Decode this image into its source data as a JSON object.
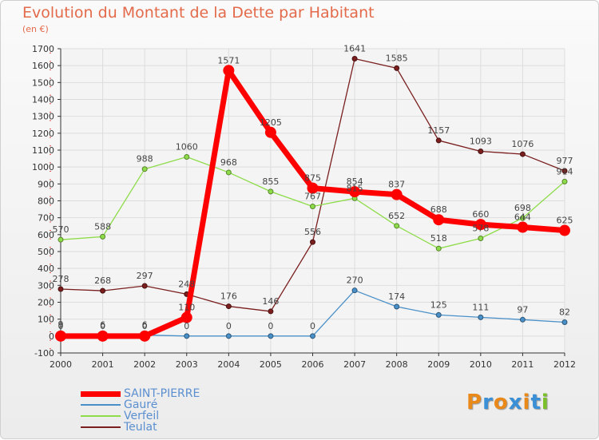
{
  "title": "Evolution du Montant de la Dette par Habitant",
  "subtitle": "(en €)",
  "logo": {
    "text": "Proxiti",
    "letter_colors": [
      "#e8891a",
      "#3a8fd6",
      "#e8891a",
      "#3a8fd6",
      "#e8891a",
      "#3a8fd6",
      "#7bbf2a"
    ]
  },
  "chart_data": {
    "type": "line",
    "title": "Evolution du Montant de la Dette par Habitant",
    "subtitle": "(en €)",
    "xlabel": "",
    "ylabel": "",
    "ylim": [
      -100,
      1700
    ],
    "yticks": [
      -100,
      0,
      100,
      200,
      300,
      400,
      500,
      600,
      700,
      800,
      900,
      1000,
      1100,
      1200,
      1300,
      1400,
      1500,
      1600,
      1700
    ],
    "grid": true,
    "legend_position": "bottom-left",
    "x": [
      "2000",
      "2001",
      "2002",
      "2003",
      "2004",
      "2005",
      "2006",
      "2007",
      "2008",
      "2009",
      "2010",
      "2011",
      "2012"
    ],
    "series": [
      {
        "name": "SAINT-PIERRE",
        "color": "#ff0000",
        "values": [
          0,
          0,
          0,
          110,
          1571,
          1205,
          875,
          854,
          837,
          688,
          660,
          644,
          625
        ]
      },
      {
        "name": "Gauré",
        "color": "#4a90c8",
        "values": [
          9,
          6,
          6,
          0,
          0,
          0,
          0,
          270,
          174,
          125,
          111,
          97,
          82
        ]
      },
      {
        "name": "Verfeil",
        "color": "#8edc4a",
        "values": [
          570,
          588,
          988,
          1060,
          968,
          855,
          767,
          815,
          652,
          518,
          578,
          698,
          914
        ]
      },
      {
        "name": "Teulat",
        "color": "#7a1e1e",
        "values": [
          278,
          268,
          297,
          248,
          176,
          146,
          556,
          1641,
          1585,
          1157,
          1093,
          1076,
          977
        ]
      }
    ]
  }
}
